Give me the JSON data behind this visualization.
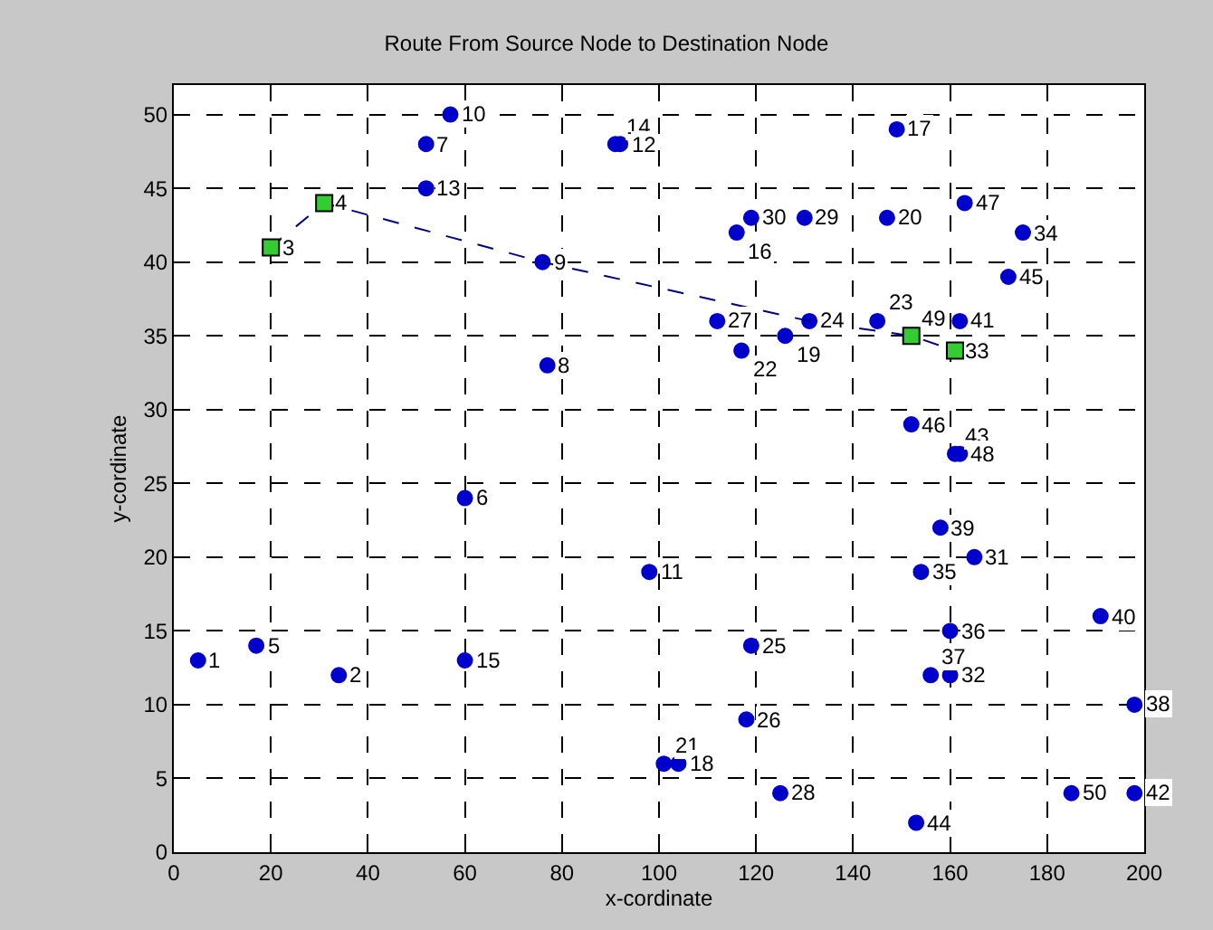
{
  "chart_data": {
    "type": "scatter",
    "title": "Route From Source Node to Destination Node",
    "xlabel": "x-cordinate",
    "ylabel": "y-cordinate",
    "xlim": [
      0,
      200
    ],
    "xticks": [
      0,
      20,
      40,
      60,
      80,
      100,
      120,
      140,
      160,
      180,
      200
    ],
    "ylim": [
      0,
      52
    ],
    "yticks": [
      0,
      5,
      10,
      15,
      20,
      25,
      30,
      35,
      40,
      45,
      50
    ],
    "grid": true,
    "series": [
      {
        "marker": "circle",
        "color": "#0000cc",
        "x": [
          5,
          34,
          17,
          60,
          60,
          52,
          52,
          57,
          91,
          92,
          76,
          77,
          116,
          119,
          130,
          112,
          117,
          126,
          131,
          149,
          147,
          163,
          175,
          172,
          145,
          162,
          152,
          161,
          162,
          158,
          154,
          165,
          160,
          156,
          160,
          191,
          198,
          185,
          198,
          153,
          98,
          119,
          118,
          101,
          104,
          125
        ],
        "values": [
          13,
          12,
          14,
          13,
          24,
          48,
          45,
          50,
          48,
          48,
          40,
          33,
          42,
          43,
          43,
          36,
          34,
          35,
          36,
          49,
          43,
          44,
          42,
          39,
          36,
          36,
          29,
          27,
          27,
          22,
          19,
          20,
          15,
          12,
          12,
          16,
          10,
          4,
          4,
          2,
          19,
          14,
          9,
          6,
          6,
          4
        ]
      },
      {
        "type": "line",
        "marker": "none",
        "line_style": "dashed",
        "color": "#000080",
        "x": [
          20,
          31,
          76,
          131,
          152,
          161
        ],
        "values": [
          41,
          44,
          40,
          36,
          35,
          34
        ]
      },
      {
        "marker": "square",
        "color": "#33cc33",
        "x": [
          20,
          31,
          152,
          161
        ],
        "values": [
          41,
          44,
          35,
          34
        ]
      }
    ],
    "annotations": [
      {
        "text": "14",
        "x": 91,
        "y": 48
      },
      {
        "text": "12",
        "x": 92,
        "y": 48
      },
      {
        "text": "1",
        "x": 5,
        "y": 13
      },
      {
        "text": "2",
        "x": 34,
        "y": 12
      },
      {
        "text": "5",
        "x": 17,
        "y": 14
      },
      {
        "text": "15",
        "x": 60,
        "y": 13
      },
      {
        "text": "6",
        "x": 60,
        "y": 24
      },
      {
        "text": "7",
        "x": 52,
        "y": 48
      },
      {
        "text": "13",
        "x": 52,
        "y": 45
      },
      {
        "text": "10",
        "x": 57,
        "y": 50
      },
      {
        "text": "9",
        "x": 76,
        "y": 40
      },
      {
        "text": "8",
        "x": 77,
        "y": 33
      },
      {
        "text": "16",
        "x": 116,
        "y": 42
      },
      {
        "text": "30",
        "x": 119,
        "y": 43
      },
      {
        "text": "29",
        "x": 130,
        "y": 43
      },
      {
        "text": "27",
        "x": 112,
        "y": 36
      },
      {
        "text": "22",
        "x": 117,
        "y": 34
      },
      {
        "text": "19",
        "x": 126,
        "y": 35
      },
      {
        "text": "24",
        "x": 131,
        "y": 36
      },
      {
        "text": "17",
        "x": 149,
        "y": 49
      },
      {
        "text": "20",
        "x": 147,
        "y": 43
      },
      {
        "text": "47",
        "x": 163,
        "y": 44
      },
      {
        "text": "34",
        "x": 175,
        "y": 42
      },
      {
        "text": "45",
        "x": 172,
        "y": 39
      },
      {
        "text": "23",
        "x": 145,
        "y": 36
      },
      {
        "text": "41",
        "x": 162,
        "y": 36
      },
      {
        "text": "46",
        "x": 152,
        "y": 29
      },
      {
        "text": "43",
        "x": 161,
        "y": 27
      },
      {
        "text": "48",
        "x": 162,
        "y": 27
      },
      {
        "text": "39",
        "x": 158,
        "y": 22
      },
      {
        "text": "35",
        "x": 154,
        "y": 19
      },
      {
        "text": "31",
        "x": 165,
        "y": 20
      },
      {
        "text": "36",
        "x": 160,
        "y": 15
      },
      {
        "text": "37",
        "x": 156,
        "y": 12
      },
      {
        "text": "32",
        "x": 160,
        "y": 12
      },
      {
        "text": "40",
        "x": 191,
        "y": 16
      },
      {
        "text": "38",
        "x": 198,
        "y": 10
      },
      {
        "text": "50",
        "x": 185,
        "y": 4
      },
      {
        "text": "42",
        "x": 198,
        "y": 4
      },
      {
        "text": "44",
        "x": 153,
        "y": 2
      },
      {
        "text": "11",
        "x": 98,
        "y": 19
      },
      {
        "text": "25",
        "x": 119,
        "y": 14
      },
      {
        "text": "26",
        "x": 118,
        "y": 9
      },
      {
        "text": "21",
        "x": 101,
        "y": 6
      },
      {
        "text": "18",
        "x": 104,
        "y": 6
      },
      {
        "text": "28",
        "x": 125,
        "y": 4
      },
      {
        "text": "3",
        "x": 20,
        "y": 41
      },
      {
        "text": "4",
        "x": 31,
        "y": 44
      },
      {
        "text": "49",
        "x": 152,
        "y": 35
      },
      {
        "text": "33",
        "x": 161,
        "y": 34
      }
    ]
  }
}
